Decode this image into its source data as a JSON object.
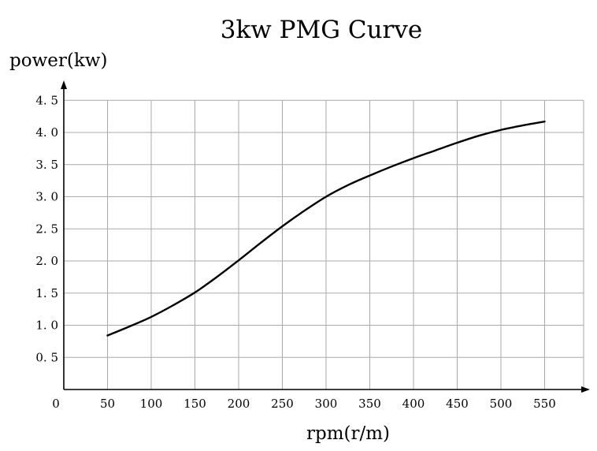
{
  "chart_data": {
    "type": "line",
    "title": "3kw PMG Curve",
    "xlabel": "rpm(r/m)",
    "ylabel": "power(kw)",
    "origin_label": "0",
    "xlim": [
      0,
      600
    ],
    "ylim": [
      0,
      4.5
    ],
    "grid": true,
    "x_ticks": [
      50,
      100,
      150,
      200,
      250,
      300,
      350,
      400,
      450,
      500,
      550
    ],
    "x_tick_labels": [
      "50",
      "100",
      "150",
      "200",
      "250",
      "300",
      "350",
      "400",
      "450",
      "500",
      "550"
    ],
    "y_ticks": [
      0.5,
      1.0,
      1.5,
      2.0,
      2.5,
      3.0,
      3.5,
      4.0,
      4.5
    ],
    "y_tick_labels": [
      "0. 5",
      "1. 0",
      "1. 5",
      "2. 0",
      "2. 5",
      "3. 0",
      "3. 5",
      "4. 0",
      "4. 5"
    ],
    "series": [
      {
        "name": "power",
        "color": "#000000",
        "x": [
          50,
          75,
          100,
          125,
          150,
          175,
          200,
          225,
          250,
          275,
          300,
          325,
          350,
          375,
          400,
          425,
          450,
          475,
          500,
          525,
          550
        ],
        "y": [
          0.84,
          0.98,
          1.13,
          1.31,
          1.51,
          1.75,
          2.01,
          2.28,
          2.54,
          2.78,
          3.0,
          3.18,
          3.33,
          3.47,
          3.6,
          3.72,
          3.84,
          3.95,
          4.04,
          4.11,
          4.17
        ]
      }
    ]
  }
}
